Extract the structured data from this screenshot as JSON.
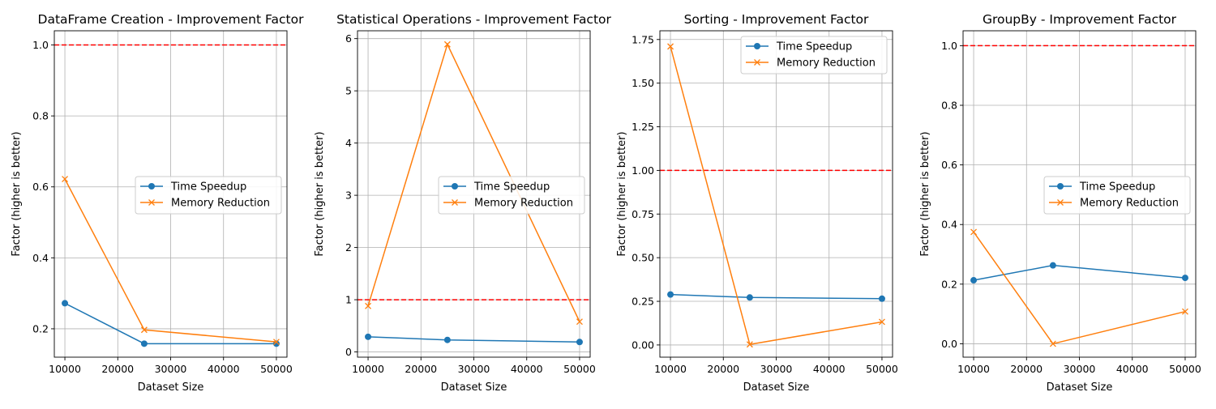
{
  "chart_data": [
    {
      "type": "line",
      "title": "DataFrame Creation - Improvement Factor",
      "xlabel": "Dataset Size",
      "ylabel": "Factor (higher is better)",
      "x": [
        10000,
        25000,
        50000
      ],
      "xticks": [
        10000,
        20000,
        30000,
        40000,
        50000
      ],
      "xlim": [
        8000,
        52000
      ],
      "yticks": [
        0.2,
        0.4,
        0.6,
        0.8,
        1.0
      ],
      "ytick_labels": [
        "0.2",
        "0.4",
        "0.6",
        "0.8",
        "1.0"
      ],
      "ylim": [
        0.12,
        1.04
      ],
      "grid": true,
      "reference_line": 1.0,
      "legend_position": "center-right",
      "series": [
        {
          "name": "Time Speedup",
          "values": [
            0.272,
            0.158,
            0.158
          ],
          "color": "#1f77b4",
          "marker": "circle"
        },
        {
          "name": "Memory Reduction",
          "values": [
            0.622,
            0.197,
            0.163
          ],
          "color": "#ff7f0e",
          "marker": "x"
        }
      ]
    },
    {
      "type": "line",
      "title": "Statistical Operations - Improvement Factor",
      "xlabel": "Dataset Size",
      "ylabel": "Factor (higher is better)",
      "x": [
        10000,
        25000,
        50000
      ],
      "xticks": [
        10000,
        20000,
        30000,
        40000,
        50000
      ],
      "xlim": [
        8000,
        52000
      ],
      "yticks": [
        0,
        1,
        2,
        3,
        4,
        5,
        6
      ],
      "ytick_labels": [
        "0",
        "1",
        "2",
        "3",
        "4",
        "5",
        "6"
      ],
      "ylim": [
        -0.1,
        6.15
      ],
      "grid": true,
      "reference_line": 1.0,
      "legend_position": "center-right",
      "series": [
        {
          "name": "Time Speedup",
          "values": [
            0.29,
            0.23,
            0.19
          ],
          "color": "#1f77b4",
          "marker": "circle"
        },
        {
          "name": "Memory Reduction",
          "values": [
            0.88,
            5.89,
            0.58
          ],
          "color": "#ff7f0e",
          "marker": "x"
        }
      ]
    },
    {
      "type": "line",
      "title": "Sorting - Improvement Factor",
      "xlabel": "Dataset Size",
      "ylabel": "Factor (higher is better)",
      "x": [
        10000,
        25000,
        50000
      ],
      "xticks": [
        10000,
        20000,
        30000,
        40000,
        50000
      ],
      "xlim": [
        8000,
        52000
      ],
      "yticks": [
        0.0,
        0.25,
        0.5,
        0.75,
        1.0,
        1.25,
        1.5,
        1.75
      ],
      "ytick_labels": [
        "0.00",
        "0.25",
        "0.50",
        "0.75",
        "1.00",
        "1.25",
        "1.50",
        "1.75"
      ],
      "ylim": [
        -0.07,
        1.8
      ],
      "grid": true,
      "reference_line": 1.0,
      "legend_position": "top-right",
      "series": [
        {
          "name": "Time Speedup",
          "values": [
            0.289,
            0.272,
            0.265
          ],
          "color": "#1f77b4",
          "marker": "circle"
        },
        {
          "name": "Memory Reduction",
          "values": [
            1.71,
            0.003,
            0.132
          ],
          "color": "#ff7f0e",
          "marker": "x"
        }
      ]
    },
    {
      "type": "line",
      "title": "GroupBy - Improvement Factor",
      "xlabel": "Dataset Size",
      "ylabel": "Factor (higher is better)",
      "x": [
        10000,
        25000,
        50000
      ],
      "xticks": [
        10000,
        20000,
        30000,
        40000,
        50000
      ],
      "xlim": [
        8000,
        52000
      ],
      "yticks": [
        0.0,
        0.2,
        0.4,
        0.6,
        0.8,
        1.0
      ],
      "ytick_labels": [
        "0.0",
        "0.2",
        "0.4",
        "0.6",
        "0.8",
        "1.0"
      ],
      "ylim": [
        -0.045,
        1.05
      ],
      "grid": true,
      "reference_line": 1.0,
      "legend_position": "center-right",
      "series": [
        {
          "name": "Time Speedup",
          "values": [
            0.213,
            0.263,
            0.221
          ],
          "color": "#1f77b4",
          "marker": "circle"
        },
        {
          "name": "Memory Reduction",
          "values": [
            0.375,
            0.0,
            0.108
          ],
          "color": "#ff7f0e",
          "marker": "x"
        }
      ]
    }
  ]
}
